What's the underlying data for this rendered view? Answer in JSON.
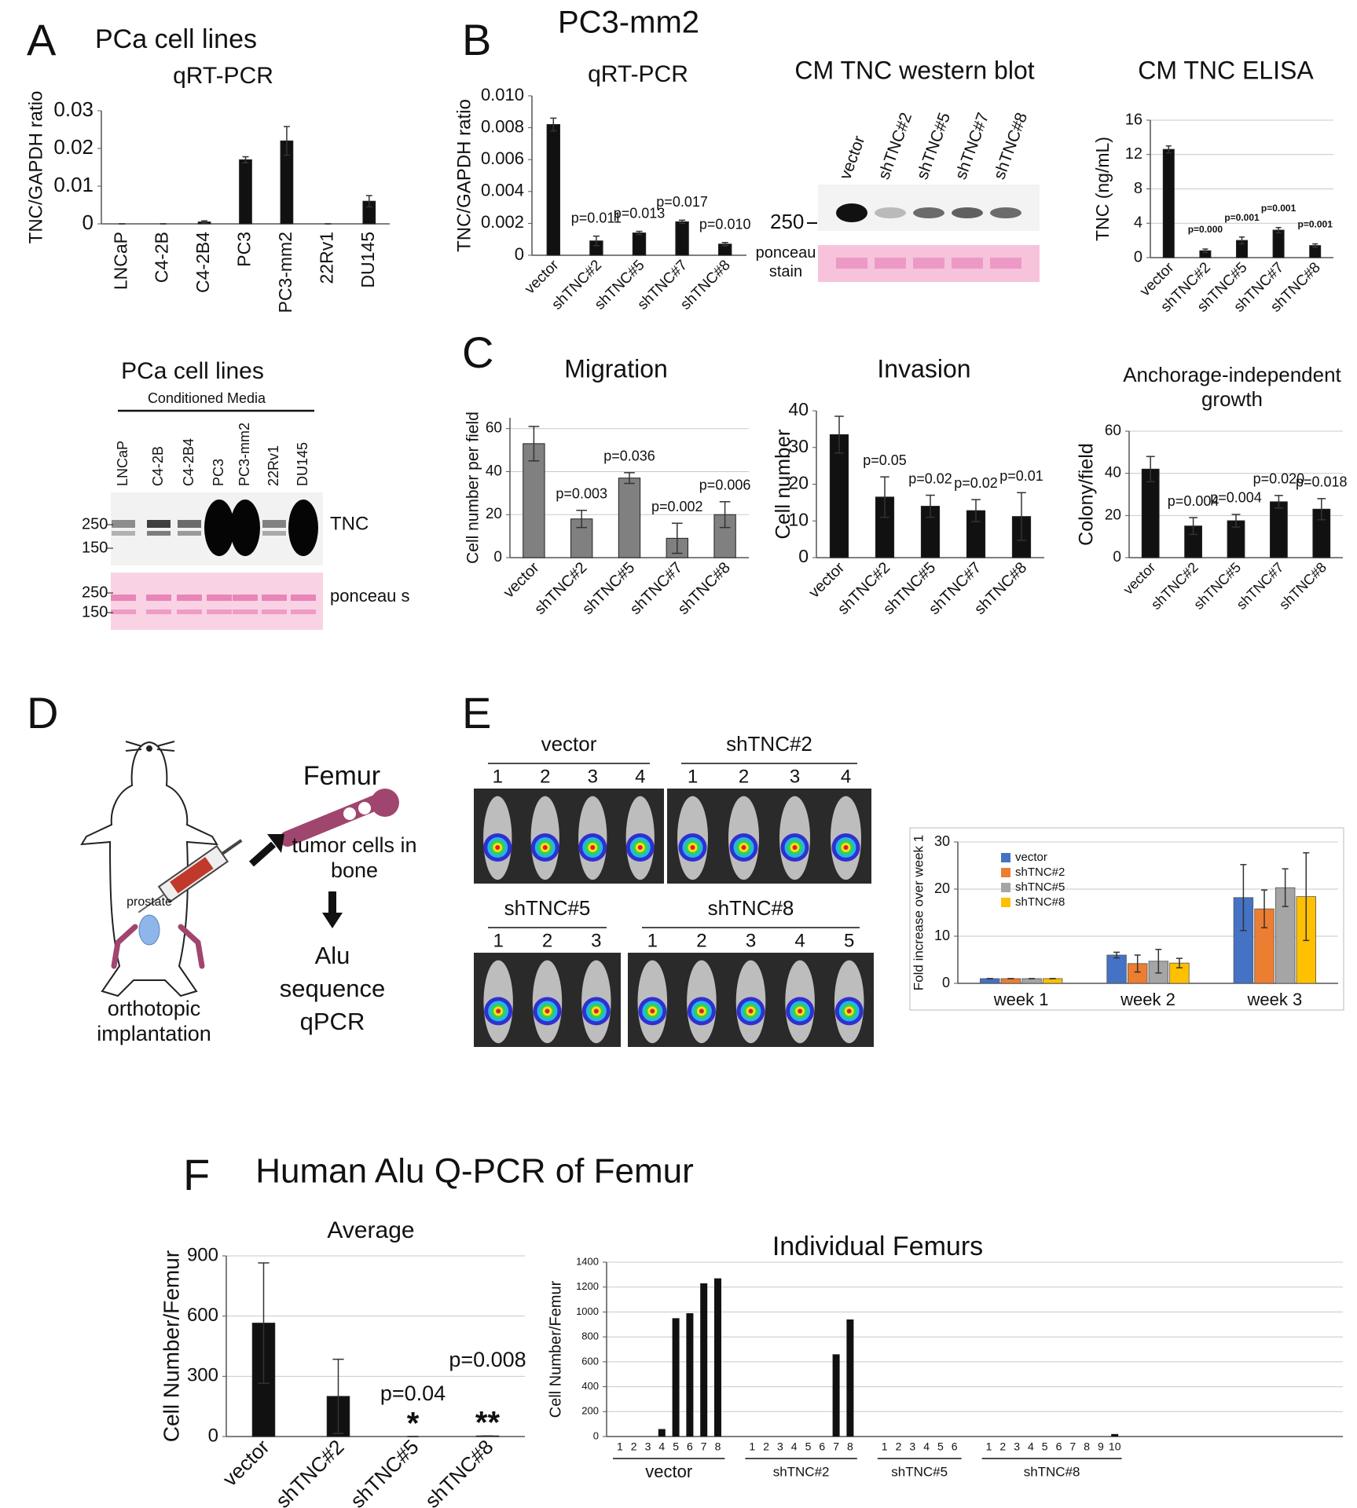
{
  "chart_data": [
    {
      "type": "bar",
      "subtitle": "PCa cell lines",
      "title": "qRT-PCR",
      "y_label": "TNC/GAPDH ratio",
      "categories": [
        "LNCaP",
        "C4-2B",
        "C4-2B4",
        "PC3",
        "PC3-mm2",
        "22Rv1",
        "DU145"
      ],
      "values": [
        0,
        0,
        0.0005,
        0.017,
        0.022,
        0,
        0.006
      ],
      "errors": [
        0,
        0,
        0.0003,
        0.0008,
        0.0038,
        0,
        0.0015
      ],
      "ylim": [
        0,
        0.03
      ],
      "yticks": [
        0,
        0.01,
        0.02,
        0.03
      ],
      "color": "#111111",
      "grid": false
    },
    {
      "type": "bar",
      "title": "qRT-PCR",
      "y_label": "TNC/GAPDH ratio",
      "categories": [
        "vector",
        "shTNC#2",
        "shTNC#5",
        "shTNC#7",
        "shTNC#8"
      ],
      "values": [
        0.0082,
        0.0009,
        0.0014,
        0.0021,
        0.0007
      ],
      "errors": [
        0.0004,
        0.0003,
        0.0001,
        0.0001,
        0.0001
      ],
      "annotations": [
        null,
        "p=0.011",
        "p=0.013",
        "p=0.017",
        "p=0.010"
      ],
      "ylim": [
        0,
        0.01
      ],
      "yticks": [
        0,
        0.002,
        0.004,
        0.006,
        0.008,
        {
          "value": 0.01,
          "label": "0.010"
        }
      ],
      "color": "#111111",
      "grid": false
    },
    {
      "type": "bar",
      "title": "CM TNC ELISA",
      "y_label": "TNC (ng/mL)",
      "categories": [
        "vector",
        "shTNC#2",
        "shTNC#5",
        "shTNC#7",
        "shTNC#8"
      ],
      "values": [
        12.6,
        0.8,
        2.0,
        3.2,
        1.4
      ],
      "errors": [
        0.4,
        0.2,
        0.4,
        0.3,
        0.2
      ],
      "annotations": [
        null,
        "p=0.000",
        "p=0.001",
        "p=0.001",
        "p=0.001"
      ],
      "ylim": [
        0,
        16
      ],
      "yticks": [
        0,
        4,
        8,
        12,
        16
      ],
      "color": "#111111",
      "grid": true
    },
    {
      "type": "bar",
      "title": "Migration",
      "y_label": "Cell number per field",
      "categories": [
        "vector",
        "shTNC#2",
        "shTNC#5",
        "shTNC#7",
        "shTNC#8"
      ],
      "values": [
        53,
        18,
        37,
        9,
        20
      ],
      "errors": [
        8,
        4,
        2.5,
        7,
        6
      ],
      "annotations": [
        null,
        "p=0.003",
        "p=0.036",
        "p=0.002",
        "p=0.006"
      ],
      "ylim": [
        0,
        65
      ],
      "yticks": [
        0,
        20,
        40,
        60
      ],
      "color": "#808080",
      "grid": true
    },
    {
      "type": "bar",
      "title": "Invasion",
      "y_label": "Cell number",
      "categories": [
        "vector",
        "shTNC#2",
        "shTNC#5",
        "shTNC#7",
        "shTNC#8"
      ],
      "values": [
        33.5,
        16.5,
        14,
        12.8,
        11.2
      ],
      "errors": [
        5,
        5.5,
        3,
        3,
        6.5
      ],
      "annotations": [
        null,
        "p=0.05",
        "p=0.02",
        "p=0.02",
        "p=0.01"
      ],
      "ylim": [
        0,
        40
      ],
      "yticks": [
        0,
        10,
        20,
        30,
        40
      ],
      "color": "#111111",
      "grid": false
    },
    {
      "type": "bar",
      "title": "Anchorage-independent growth",
      "y_label": "Colony/field",
      "categories": [
        "vector",
        "shTNC#2",
        "shTNC#5",
        "shTNC#7",
        "shTNC#8"
      ],
      "values": [
        42,
        15,
        17.5,
        26.5,
        23
      ],
      "errors": [
        6,
        4,
        3,
        3,
        5
      ],
      "annotations": [
        null,
        "p=0.004",
        "p=0.004",
        "p=0.020",
        "p=0.018"
      ],
      "ylim": [
        0,
        60
      ],
      "yticks": [
        0,
        20,
        40,
        60
      ],
      "color": "#111111",
      "grid": true
    },
    {
      "type": "grouped_bar",
      "y_label": "Fold increase over week 1",
      "categories": [
        "week 1",
        "week 2",
        "week 3"
      ],
      "series": [
        {
          "name": "vector",
          "color": "#4472c4",
          "values": [
            1,
            6,
            18.2
          ],
          "errors": [
            0,
            0.6,
            7
          ]
        },
        {
          "name": "shTNC#2",
          "color": "#ed7d31",
          "values": [
            1,
            4.2,
            15.8
          ],
          "errors": [
            0,
            1.8,
            4
          ]
        },
        {
          "name": "shTNC#5",
          "color": "#a5a5a5",
          "values": [
            1,
            4.7,
            20.3
          ],
          "errors": [
            0,
            2.5,
            4
          ]
        },
        {
          "name": "shTNC#8",
          "color": "#ffc000",
          "values": [
            1,
            4.3,
            18.4
          ],
          "errors": [
            0,
            1,
            9.3
          ]
        }
      ],
      "ylim": [
        0,
        30
      ],
      "yticks": [
        0,
        10,
        20,
        30
      ],
      "grid": true,
      "legend": "upper left"
    },
    {
      "type": "bar",
      "title": "Average",
      "y_label": "Cell Number/Femur",
      "categories": [
        "vector",
        "shTNC#2",
        "shTNC#5",
        "shTNC#8"
      ],
      "values": [
        565,
        200,
        0,
        3
      ],
      "errors": [
        300,
        185,
        0,
        0
      ],
      "annotations": [
        null,
        null,
        "p=0.04",
        "p=0.008"
      ],
      "markers": [
        null,
        null,
        "*",
        "**"
      ],
      "ylim": [
        0,
        900
      ],
      "yticks": [
        0,
        300,
        600,
        900
      ],
      "color": "#111111",
      "grid": true
    },
    {
      "type": "grouped_columns",
      "title": "Individual Femurs",
      "y_label": "Cell Number/Femur",
      "groups": [
        {
          "name": "vector",
          "categories": [
            "1",
            "2",
            "3",
            "4",
            "5",
            "6",
            "7",
            "8"
          ],
          "values": [
            0,
            0,
            0,
            60,
            950,
            990,
            1230,
            1270
          ]
        },
        {
          "name": "shTNC#2",
          "categories": [
            "1",
            "2",
            "3",
            "4",
            "5",
            "6",
            "7",
            "8"
          ],
          "values": [
            0,
            0,
            0,
            0,
            0,
            0,
            660,
            940
          ]
        },
        {
          "name": "shTNC#5",
          "categories": [
            "1",
            "2",
            "3",
            "4",
            "5",
            "6"
          ],
          "values": [
            0,
            0,
            0,
            0,
            0,
            0
          ]
        },
        {
          "name": "shTNC#8",
          "categories": [
            "1",
            "2",
            "3",
            "4",
            "5",
            "6",
            "7",
            "8",
            "9",
            "10"
          ],
          "values": [
            0,
            0,
            0,
            0,
            0,
            0,
            0,
            0,
            0,
            20
          ]
        }
      ],
      "ylim": [
        0,
        1400
      ],
      "yticks": [
        0,
        200,
        400,
        600,
        800,
        1000,
        1200,
        1400
      ],
      "color": "#111111",
      "grid": true
    }
  ],
  "figure": {
    "panels": [
      "A",
      "B",
      "C",
      "D",
      "E",
      "F"
    ],
    "b_heading": "PC3-mm2",
    "f_heading": "Human Alu Q-PCR of Femur",
    "blot_a": {
      "title": "PCa cell lines",
      "subtitle": "Conditioned Media",
      "lanes": [
        "LNCaP",
        "C4-2B",
        "C4-2B4",
        "PC3",
        "PC3-mm2",
        "22Rv1",
        "DU145"
      ],
      "markers": [
        "250",
        "150"
      ],
      "ponceau_markers": [
        "250",
        "150"
      ],
      "band_label": "TNC",
      "stain_label": "ponceau s"
    },
    "blot_b": {
      "title": "CM TNC western blot",
      "lanes": [
        "vector",
        "shTNC#2",
        "shTNC#5",
        "shTNC#7",
        "shTNC#8"
      ],
      "marker": "250",
      "stain_label": "ponceau stain"
    },
    "diagram": {
      "site": "prostate",
      "bone": "Femur",
      "cells": "tumor cells in bone",
      "assay": "Alu sequence qPCR",
      "method": "orthotopic implantation"
    },
    "imaging": {
      "groups": [
        {
          "name": "vector",
          "mice": [
            "1",
            "2",
            "3",
            "4"
          ]
        },
        {
          "name": "shTNC#2",
          "mice": [
            "1",
            "2",
            "3",
            "4"
          ]
        },
        {
          "name": "shTNC#5",
          "mice": [
            "1",
            "2",
            "3"
          ]
        },
        {
          "name": "shTNC#8",
          "mice": [
            "1",
            "2",
            "3",
            "4",
            "5"
          ]
        }
      ]
    }
  }
}
